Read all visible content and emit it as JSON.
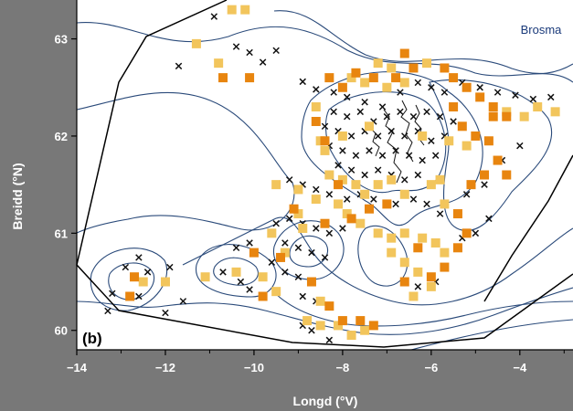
{
  "chart_data": {
    "type": "scatter",
    "title": "Brosma",
    "panel_label": "(b)",
    "xlabel": "Longd (°V)",
    "ylabel": "Breidd (°N)",
    "xlim": [
      -14.0,
      -2.8
    ],
    "ylim": [
      59.8,
      63.4
    ],
    "xticks": [
      -14,
      -12,
      -10,
      -8,
      -6,
      -4
    ],
    "xtick_labels": [
      "−14",
      "−12",
      "−10",
      "−8",
      "−6",
      "−4"
    ],
    "yticks": [
      60,
      61,
      62,
      63
    ],
    "ytick_labels": [
      "60",
      "61",
      "62",
      "63"
    ],
    "grid": false,
    "legend": "none",
    "colors": {
      "background": "#787878",
      "plot": "#ffffff",
      "contour": "#2a4a7a",
      "x_marker": "#111111",
      "light_square": "#f2c55c",
      "dark_square": "#e8850f",
      "axis_text": "#ffffff"
    },
    "series": [
      {
        "marker": "x",
        "color": "#111111",
        "points": [
          [
            -10.9,
            63.23
          ],
          [
            -10.4,
            62.92
          ],
          [
            -10.1,
            62.86
          ],
          [
            -9.8,
            62.76
          ],
          [
            -9.5,
            62.88
          ],
          [
            -11.7,
            62.72
          ],
          [
            -8.9,
            62.56
          ],
          [
            -8.6,
            62.48
          ],
          [
            -8.2,
            62.45
          ],
          [
            -7.9,
            62.4
          ],
          [
            -7.5,
            62.35
          ],
          [
            -7.1,
            62.3
          ],
          [
            -6.7,
            62.45
          ],
          [
            -6.3,
            62.55
          ],
          [
            -6.0,
            62.5
          ],
          [
            -5.7,
            62.45
          ],
          [
            -5.3,
            62.55
          ],
          [
            -4.9,
            62.5
          ],
          [
            -4.5,
            62.45
          ],
          [
            -4.1,
            62.42
          ],
          [
            -3.7,
            62.38
          ],
          [
            -3.3,
            62.4
          ],
          [
            -8.2,
            62.25
          ],
          [
            -7.9,
            62.2
          ],
          [
            -7.6,
            62.25
          ],
          [
            -7.3,
            62.15
          ],
          [
            -7.0,
            62.2
          ],
          [
            -6.7,
            62.25
          ],
          [
            -6.4,
            62.2
          ],
          [
            -6.1,
            62.25
          ],
          [
            -5.8,
            62.2
          ],
          [
            -5.5,
            62.15
          ],
          [
            -8.4,
            62.1
          ],
          [
            -8.1,
            62.05
          ],
          [
            -7.8,
            62.0
          ],
          [
            -7.5,
            62.05
          ],
          [
            -7.2,
            62.0
          ],
          [
            -6.9,
            62.05
          ],
          [
            -6.6,
            62.0
          ],
          [
            -6.3,
            62.05
          ],
          [
            -6.0,
            61.95
          ],
          [
            -5.7,
            62.0
          ],
          [
            -8.3,
            61.9
          ],
          [
            -8.0,
            61.85
          ],
          [
            -7.7,
            61.8
          ],
          [
            -7.4,
            61.85
          ],
          [
            -7.1,
            61.8
          ],
          [
            -6.8,
            61.85
          ],
          [
            -6.5,
            61.8
          ],
          [
            -6.2,
            61.75
          ],
          [
            -5.9,
            61.8
          ],
          [
            -8.1,
            61.7
          ],
          [
            -7.8,
            61.65
          ],
          [
            -7.5,
            61.6
          ],
          [
            -7.2,
            61.65
          ],
          [
            -6.9,
            61.6
          ],
          [
            -6.6,
            61.55
          ],
          [
            -6.3,
            61.6
          ],
          [
            -9.2,
            61.55
          ],
          [
            -8.9,
            61.5
          ],
          [
            -8.6,
            61.45
          ],
          [
            -8.3,
            61.4
          ],
          [
            -7.9,
            61.35
          ],
          [
            -7.6,
            61.4
          ],
          [
            -7.3,
            61.35
          ],
          [
            -6.8,
            61.3
          ],
          [
            -6.4,
            61.35
          ],
          [
            -6.1,
            61.3
          ],
          [
            -5.8,
            61.2
          ],
          [
            -9.5,
            61.1
          ],
          [
            -9.2,
            61.15
          ],
          [
            -8.9,
            61.1
          ],
          [
            -8.6,
            61.05
          ],
          [
            -8.3,
            61.0
          ],
          [
            -8.0,
            61.05
          ],
          [
            -9.3,
            60.9
          ],
          [
            -9.0,
            60.85
          ],
          [
            -8.7,
            60.8
          ],
          [
            -8.4,
            60.75
          ],
          [
            -9.6,
            60.7
          ],
          [
            -9.3,
            60.6
          ],
          [
            -9.0,
            60.55
          ],
          [
            -8.7,
            60.5
          ],
          [
            -10.4,
            60.85
          ],
          [
            -10.1,
            60.9
          ],
          [
            -10.7,
            60.6
          ],
          [
            -10.3,
            60.5
          ],
          [
            -10.1,
            60.42
          ],
          [
            -9.8,
            60.55
          ],
          [
            -8.9,
            60.35
          ],
          [
            -8.6,
            60.3
          ],
          [
            -8.9,
            60.05
          ],
          [
            -8.7,
            60.0
          ],
          [
            -8.3,
            59.9
          ],
          [
            -12.9,
            60.65
          ],
          [
            -12.6,
            60.75
          ],
          [
            -12.4,
            60.6
          ],
          [
            -11.9,
            60.65
          ],
          [
            -13.2,
            60.38
          ],
          [
            -13.3,
            60.2
          ],
          [
            -12.6,
            60.35
          ],
          [
            -11.6,
            60.3
          ],
          [
            -12.0,
            60.18
          ],
          [
            -5.0,
            61.0
          ],
          [
            -4.7,
            61.15
          ],
          [
            -5.2,
            61.4
          ],
          [
            -4.8,
            61.5
          ],
          [
            -4.4,
            61.75
          ],
          [
            -4.0,
            61.9
          ],
          [
            -5.3,
            60.95
          ],
          [
            -5.9,
            60.5
          ],
          [
            -6.3,
            60.45
          ]
        ]
      },
      {
        "marker": "square",
        "color": "#f2c55c",
        "points": [
          [
            -10.5,
            63.3
          ],
          [
            -10.2,
            63.3
          ],
          [
            -11.3,
            62.95
          ],
          [
            -10.8,
            62.75
          ],
          [
            -7.2,
            62.75
          ],
          [
            -6.9,
            62.7
          ],
          [
            -6.1,
            62.75
          ],
          [
            -7.8,
            62.6
          ],
          [
            -7.5,
            62.55
          ],
          [
            -7.0,
            62.5
          ],
          [
            -6.6,
            62.55
          ],
          [
            -4.3,
            62.25
          ],
          [
            -3.9,
            62.2
          ],
          [
            -3.6,
            62.3
          ],
          [
            -3.2,
            62.25
          ],
          [
            -8.0,
            62.0
          ],
          [
            -8.5,
            61.95
          ],
          [
            -8.4,
            61.85
          ],
          [
            -8.3,
            61.6
          ],
          [
            -8.0,
            61.55
          ],
          [
            -7.7,
            61.5
          ],
          [
            -7.5,
            61.4
          ],
          [
            -7.2,
            61.5
          ],
          [
            -6.9,
            61.55
          ],
          [
            -6.6,
            61.4
          ],
          [
            -6.0,
            61.5
          ],
          [
            -5.8,
            61.55
          ],
          [
            -5.7,
            61.3
          ],
          [
            -9.5,
            61.5
          ],
          [
            -9.0,
            61.45
          ],
          [
            -8.6,
            61.35
          ],
          [
            -8.1,
            61.3
          ],
          [
            -7.9,
            61.2
          ],
          [
            -7.6,
            61.1
          ],
          [
            -7.2,
            61.0
          ],
          [
            -6.9,
            60.95
          ],
          [
            -6.6,
            61.0
          ],
          [
            -6.2,
            60.95
          ],
          [
            -5.9,
            60.9
          ],
          [
            -5.7,
            60.8
          ],
          [
            -6.9,
            60.8
          ],
          [
            -6.6,
            60.7
          ],
          [
            -6.3,
            60.6
          ],
          [
            -6.0,
            60.45
          ],
          [
            -6.4,
            60.35
          ],
          [
            -9.0,
            61.2
          ],
          [
            -8.9,
            61.05
          ],
          [
            -9.6,
            61.0
          ],
          [
            -9.3,
            60.8
          ],
          [
            -10.4,
            60.6
          ],
          [
            -11.1,
            60.55
          ],
          [
            -9.8,
            60.55
          ],
          [
            -9.5,
            60.4
          ],
          [
            -8.5,
            60.3
          ],
          [
            -8.8,
            60.1
          ],
          [
            -8.5,
            60.05
          ],
          [
            -8.1,
            60.05
          ],
          [
            -7.8,
            59.95
          ],
          [
            -7.5,
            60.0
          ],
          [
            -12.5,
            60.5
          ],
          [
            -12.0,
            60.5
          ],
          [
            -7.4,
            62.1
          ],
          [
            -6.2,
            62.0
          ],
          [
            -5.6,
            61.95
          ],
          [
            -5.2,
            61.9
          ],
          [
            -8.6,
            62.3
          ]
        ]
      },
      {
        "marker": "square",
        "color": "#e8850f",
        "points": [
          [
            -10.7,
            62.6
          ],
          [
            -10.1,
            62.6
          ],
          [
            -6.6,
            62.85
          ],
          [
            -6.4,
            62.7
          ],
          [
            -5.7,
            62.7
          ],
          [
            -5.5,
            62.6
          ],
          [
            -5.2,
            62.5
          ],
          [
            -4.9,
            62.4
          ],
          [
            -4.6,
            62.3
          ],
          [
            -4.3,
            62.2
          ],
          [
            -8.3,
            62.6
          ],
          [
            -8.0,
            62.5
          ],
          [
            -7.7,
            62.65
          ],
          [
            -7.3,
            62.6
          ],
          [
            -6.8,
            62.6
          ],
          [
            -8.6,
            62.15
          ],
          [
            -8.4,
            61.95
          ],
          [
            -5.5,
            62.3
          ],
          [
            -5.3,
            62.1
          ],
          [
            -5.0,
            62.0
          ],
          [
            -4.7,
            61.95
          ],
          [
            -4.5,
            61.75
          ],
          [
            -4.8,
            61.6
          ],
          [
            -5.1,
            61.5
          ],
          [
            -5.4,
            61.2
          ],
          [
            -5.2,
            61.0
          ],
          [
            -5.4,
            60.85
          ],
          [
            -5.7,
            60.65
          ],
          [
            -6.0,
            60.55
          ],
          [
            -6.3,
            60.85
          ],
          [
            -6.6,
            60.5
          ],
          [
            -7.0,
            61.3
          ],
          [
            -7.4,
            61.25
          ],
          [
            -7.8,
            61.15
          ],
          [
            -8.1,
            61.5
          ],
          [
            -8.4,
            61.1
          ],
          [
            -9.1,
            61.25
          ],
          [
            -9.4,
            60.75
          ],
          [
            -10.0,
            60.8
          ],
          [
            -9.8,
            60.35
          ],
          [
            -12.7,
            60.55
          ],
          [
            -12.8,
            60.35
          ],
          [
            -8.7,
            60.5
          ],
          [
            -8.3,
            60.25
          ],
          [
            -8.0,
            60.1
          ],
          [
            -7.6,
            60.1
          ],
          [
            -7.3,
            60.05
          ],
          [
            -4.6,
            62.2
          ],
          [
            -4.3,
            61.6
          ]
        ]
      }
    ]
  }
}
